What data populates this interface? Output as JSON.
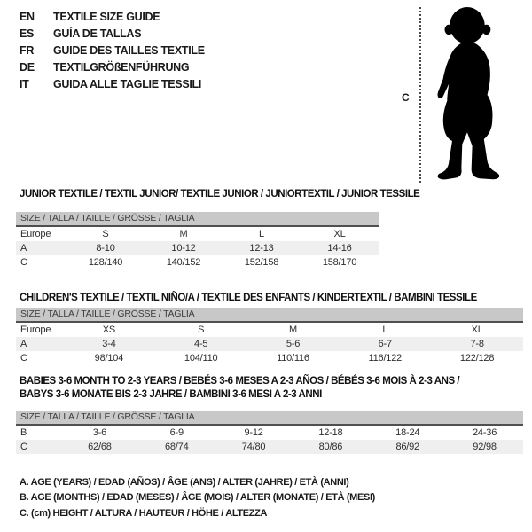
{
  "languages": {
    "items": [
      {
        "code": "EN",
        "label": "TEXTILE SIZE GUIDE"
      },
      {
        "code": "ES",
        "label": "GUÍA DE TALLAS"
      },
      {
        "code": "FR",
        "label": "GUIDE DES TAILLES TEXTILE"
      },
      {
        "code": "DE",
        "label": "TEXTILGRÖßENFÜHRUNG"
      },
      {
        "code": "IT",
        "label": "GUIDA ALLE TAGLIE TESSILI"
      }
    ]
  },
  "figure": {
    "measure_label": "C",
    "description": "baby silhouette with dotted height line"
  },
  "tables": [
    {
      "title_lines": [
        "JUNIOR TEXTILE / TEXTIL JUNIOR/ TEXTILE JUNIOR / JUNIORTEXTIL / JUNIOR TESSILE"
      ],
      "header": "SIZE / TALLA / TAILLE / GRÖSSE / TAGLIA",
      "rows": [
        {
          "label": "Europe",
          "values": [
            "S",
            "M",
            "L",
            "XL"
          ],
          "shaded": false
        },
        {
          "label": "A",
          "values": [
            "8-10",
            "10-12",
            "12-13",
            "14-16"
          ],
          "shaded": true
        },
        {
          "label": "C",
          "values": [
            "128/140",
            "140/152",
            "152/158",
            "158/170"
          ],
          "shaded": false
        }
      ]
    },
    {
      "title_lines": [
        "CHILDREN'S TEXTILE / TEXTIL NIÑO/A / TEXTILE DES ENFANTS / KINDERTEXTIL / BAMBINI TESSILE"
      ],
      "header": "SIZE / TALLA / TAILLE / GRÖSSE / TAGLIA",
      "rows": [
        {
          "label": "Europe",
          "values": [
            "XS",
            "S",
            "M",
            "L",
            "XL"
          ],
          "shaded": false
        },
        {
          "label": "A",
          "values": [
            "3-4",
            "4-5",
            "5-6",
            "6-7",
            "7-8"
          ],
          "shaded": true
        },
        {
          "label": "C",
          "values": [
            "98/104",
            "104/110",
            "110/116",
            "116/122",
            "122/128"
          ],
          "shaded": false
        }
      ]
    },
    {
      "title_lines": [
        "BABIES 3-6 MONTH TO 2-3 YEARS / BEBÉS 3-6 MESES A 2-3 AÑOS / BÉBÉS 3-6 MOIS À 2-3 ANS /",
        "BABYS 3-6 MONATE BIS 2-3 JAHRE / BAMBINI 3-6 MESI A 2-3 ANNI"
      ],
      "header": "SIZE / TALLA / TAILLE / GRÖSSE / TAGLIA",
      "rows": [
        {
          "label": "B",
          "values": [
            "3-6",
            "6-9",
            "9-12",
            "12-18",
            "18-24",
            "24-36"
          ],
          "shaded": false
        },
        {
          "label": "C",
          "values": [
            "62/68",
            "68/74",
            "74/80",
            "80/86",
            "86/92",
            "92/98"
          ],
          "shaded": true
        }
      ]
    }
  ],
  "notes": {
    "items": [
      "A. AGE (YEARS) / EDAD (AÑOS) / ÂGE (ANS) / ALTER (JAHRE) / ETÀ (ANNI)",
      "B. AGE (MONTHS) / EDAD (MESES) / ÂGE (MOIS) / ALTER (MONATE) / ETÀ (MESI)",
      "C. (cm) HEIGHT / ALTURA / HAUTEUR / HÖHE / ALTEZZA"
    ]
  },
  "colors": {
    "size_bar_bg": "#c8c8c8",
    "size_bar_border": "#4f4f4f",
    "shaded_row_bg": "#efefef",
    "text": "#1a1a1a",
    "silhouette": "#000000",
    "dotted_line": "#4a4a4a"
  }
}
